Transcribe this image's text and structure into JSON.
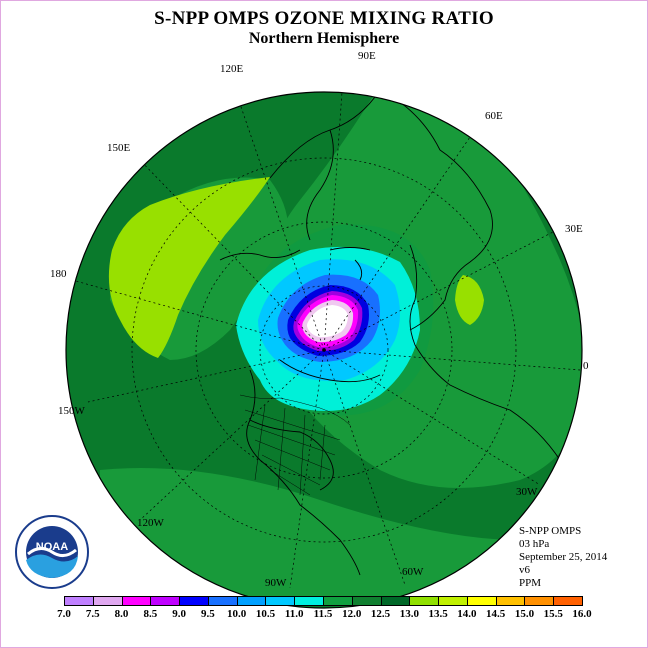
{
  "title": "S-NPP OMPS OZONE MIXING RATIO",
  "subtitle": "Northern Hemisphere",
  "longitudes": {
    "e90": "90E",
    "e60": "60E",
    "e30": "30E",
    "zero": "0",
    "w30": "30W",
    "w60": "60W",
    "w90": "90W",
    "w120": "120W",
    "w150": "150W",
    "e180": "180",
    "e150": "150E",
    "e120": "120E"
  },
  "info": {
    "instrument": "S-NPP OMPS",
    "level": "03 hPa",
    "date": "September 25, 2014",
    "version": "v6",
    "units": "PPM"
  },
  "logo_text": "NOAA",
  "colorbar": {
    "ticks": [
      "7.0",
      "7.5",
      "8.0",
      "8.5",
      "9.0",
      "9.5",
      "10.0",
      "10.5",
      "11.0",
      "11.5",
      "12.0",
      "12.5",
      "13.0",
      "13.5",
      "14.0",
      "14.5",
      "15.0",
      "15.5",
      "16.0"
    ],
    "colors": [
      "#c080ff",
      "#e0a8f0",
      "#ff00ff",
      "#c000ff",
      "#0000ff",
      "#1870ff",
      "#00a0ff",
      "#00c8ff",
      "#00f0e0",
      "#10a040",
      "#108030",
      "#006828",
      "#90e000",
      "#c0f000",
      "#ffff00",
      "#ffc000",
      "#ff9000",
      "#ff6000",
      "#ff0000",
      "#a06040"
    ]
  }
}
